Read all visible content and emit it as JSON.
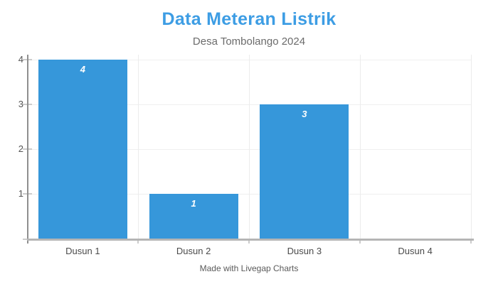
{
  "chart_data": {
    "type": "bar",
    "title": "Data Meteran Listrik",
    "subtitle": "Desa Tombolango 2024",
    "footer": "Made with Livegap Charts",
    "categories": [
      "Dusun 1",
      "Dusun 2",
      "Dusun 3",
      "Dusun 4"
    ],
    "values": [
      4,
      1,
      3,
      0
    ],
    "xlabel": "",
    "ylabel": "",
    "ylim": [
      0,
      4
    ],
    "y_ticks": [
      1,
      2,
      3,
      4
    ],
    "grid": "on",
    "legend": "none",
    "bar_color": "#3697da",
    "value_label_color": "#ffffff",
    "title_color": "#3d9de4",
    "subtitle_color": "#6b6b6b"
  }
}
